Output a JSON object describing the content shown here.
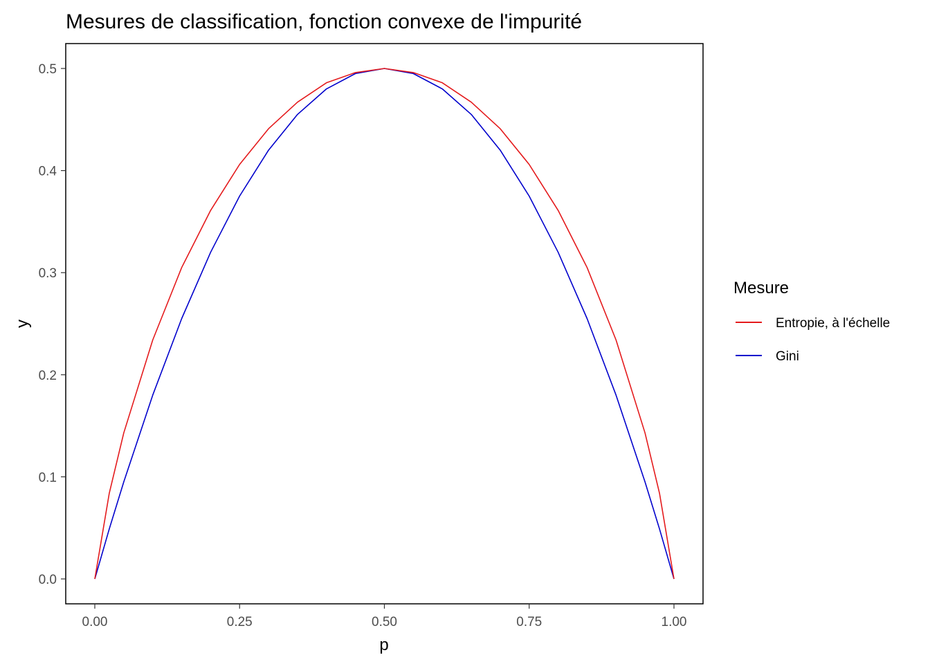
{
  "chart_data": {
    "type": "line",
    "title": "Mesures de classification, fonction convexe de l'impurité",
    "xlabel": "p",
    "ylabel": "y",
    "xlim": [
      0,
      1
    ],
    "ylim": [
      0,
      0.5
    ],
    "xticks": [
      "0.00",
      "0.25",
      "0.50",
      "0.75",
      "1.00"
    ],
    "yticks": [
      "0.0",
      "0.1",
      "0.2",
      "0.3",
      "0.4",
      "0.5"
    ],
    "grid": false,
    "legend": {
      "title": "Mesure",
      "position": "right",
      "entries": [
        {
          "label": "Entropie, à l'échelle",
          "color": "#e41a1c"
        },
        {
          "label": "Gini",
          "color": "#0000cc"
        }
      ]
    },
    "x": [
      0.0,
      0.025,
      0.05,
      0.1,
      0.15,
      0.2,
      0.25,
      0.3,
      0.35,
      0.4,
      0.45,
      0.5,
      0.55,
      0.6,
      0.65,
      0.7,
      0.75,
      0.8,
      0.85,
      0.9,
      0.95,
      0.975,
      1.0
    ],
    "series": [
      {
        "name": "Entropie, à l'échelle",
        "color": "#e41a1c",
        "values": [
          0.0,
          0.084,
          0.143,
          0.234,
          0.305,
          0.361,
          0.406,
          0.441,
          0.467,
          0.486,
          0.496,
          0.5,
          0.496,
          0.486,
          0.467,
          0.441,
          0.406,
          0.361,
          0.305,
          0.234,
          0.143,
          0.084,
          0.0
        ]
      },
      {
        "name": "Gini",
        "color": "#0000cc",
        "values": [
          0.0,
          0.049,
          0.095,
          0.18,
          0.255,
          0.32,
          0.375,
          0.42,
          0.455,
          0.48,
          0.495,
          0.5,
          0.495,
          0.48,
          0.455,
          0.42,
          0.375,
          0.32,
          0.255,
          0.18,
          0.095,
          0.049,
          0.0
        ]
      }
    ]
  }
}
